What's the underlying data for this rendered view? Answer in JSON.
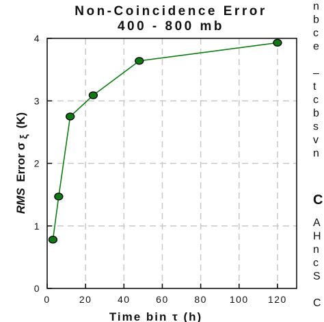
{
  "chart_data": {
    "type": "line",
    "title": "Non-Coincidence Error",
    "subtitle": "400 - 800 mb",
    "xlabel": "Time bin τ (h)",
    "ylabel": {
      "italic": "RMS",
      "normal": "Error σ",
      "sub": "ξ",
      "unit": "(K)"
    },
    "xlim": [
      0,
      130
    ],
    "ylim": [
      0,
      4
    ],
    "x_ticks": [
      0,
      20,
      40,
      60,
      80,
      100,
      120
    ],
    "y_ticks": [
      0,
      1,
      2,
      3,
      4
    ],
    "grid": true,
    "series": [
      {
        "x": [
          3,
          6,
          12,
          24,
          48,
          120
        ],
        "y": [
          0.78,
          1.47,
          2.75,
          3.09,
          3.64,
          3.93
        ]
      }
    ],
    "colors": {
      "line": "#0f7a14",
      "marker_fill": "#0f7a14",
      "marker_edge": "#000000",
      "grid": "#c8c8c8"
    }
  },
  "side_text": {
    "lines": [
      "n",
      "b",
      "c",
      "e",
      "",
      "–",
      "t",
      "c",
      "b",
      "s",
      "v",
      "n"
    ],
    "heading": "C",
    "lines2": [
      "A",
      "H",
      "n",
      "c",
      "S",
      "",
      "C"
    ]
  }
}
